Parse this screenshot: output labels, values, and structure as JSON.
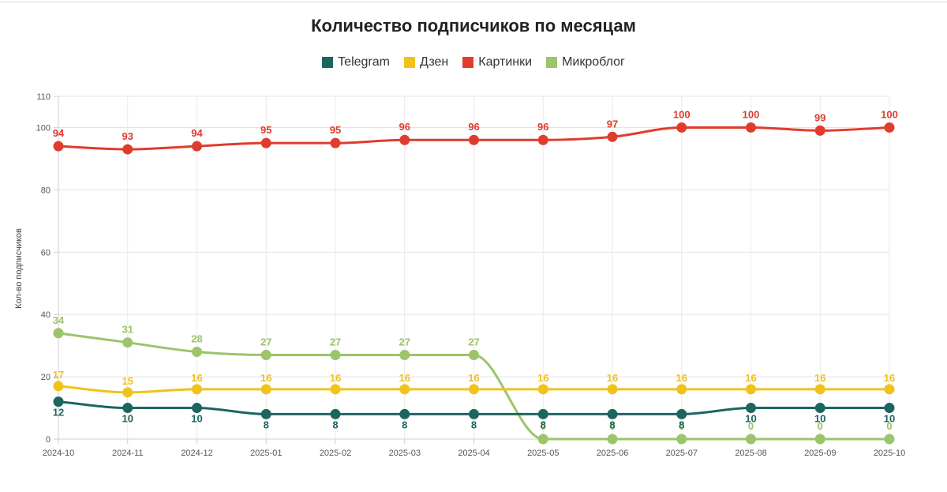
{
  "chart_data": {
    "type": "line",
    "title": "Количество подписчиков по месяцам",
    "xlabel": "",
    "ylabel": "Кол-во подписчиков",
    "ylim": [
      0,
      110
    ],
    "yticks": [
      0,
      20,
      40,
      60,
      80,
      100,
      110
    ],
    "grid": true,
    "legend_position": "top-center",
    "categories": [
      "2024-10",
      "2024-11",
      "2024-12",
      "2025-01",
      "2025-02",
      "2025-03",
      "2025-04",
      "2025-05",
      "2025-06",
      "2025-07",
      "2025-08",
      "2025-09",
      "2025-10"
    ],
    "series": [
      {
        "name": "Telegram",
        "color": "#1c6660",
        "values": [
          12,
          10,
          10,
          8,
          8,
          8,
          8,
          8,
          8,
          8,
          10,
          10,
          10
        ]
      },
      {
        "name": "Дзен",
        "color": "#f1c21b",
        "values": [
          17,
          15,
          16,
          16,
          16,
          16,
          16,
          16,
          16,
          16,
          16,
          16,
          16
        ]
      },
      {
        "name": "Картинки",
        "color": "#e03c2e",
        "values": [
          94,
          93,
          94,
          95,
          95,
          96,
          96,
          96,
          97,
          100,
          100,
          99,
          100
        ]
      },
      {
        "name": "Микроблог",
        "color": "#9bc46b",
        "values": [
          34,
          31,
          28,
          27,
          27,
          27,
          27,
          0,
          0,
          0,
          0,
          0,
          0
        ]
      }
    ]
  }
}
